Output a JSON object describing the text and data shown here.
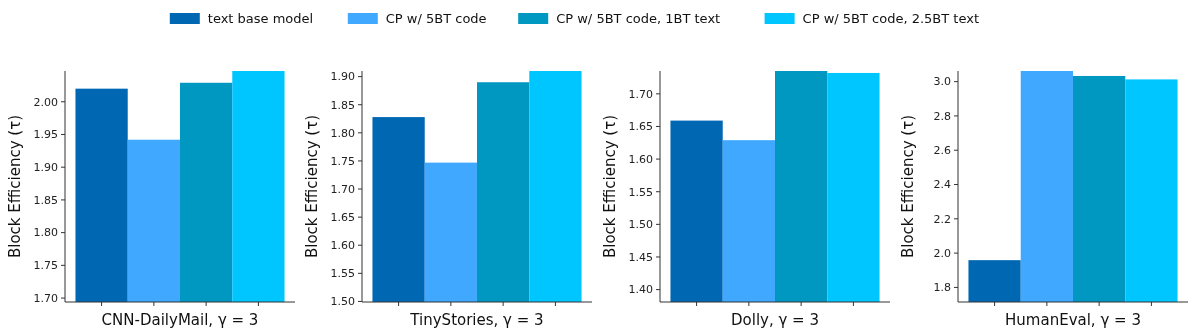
{
  "chart_data": [
    {
      "type": "bar",
      "xlabel": "CNN-DailyMail, γ = 3",
      "ylabel": "Block Efficiency (τ)",
      "categories": [
        null,
        null,
        null,
        null
      ],
      "legend": "top",
      "ylim": [
        1.694,
        2.047
      ],
      "yticks": [
        {
          "value": 1.7,
          "label": "1.70"
        },
        {
          "value": 1.75,
          "label": "1.75"
        },
        {
          "value": 1.8,
          "label": "1.80"
        },
        1.85,
        {
          "value": 1.9,
          "label": "1.90"
        },
        1.95,
        {
          "value": 2.0,
          "label": "2.00"
        }
      ],
      "series": [
        {
          "name": "text base model",
          "color": "#0068b3",
          "values": [
            2.02,
            null,
            null,
            null
          ]
        },
        {
          "name": "CP w/ 5BT code",
          "color": "#40a9ff",
          "values": [
            null,
            1.942,
            null,
            null
          ]
        },
        {
          "name": "CP w/ 5BT code, 1BT text",
          "color": "#0097c1",
          "values": [
            null,
            null,
            2.029,
            null
          ]
        },
        {
          "name": "CP w/ 5BT code, 2.5BT text",
          "color": "#00c6ff",
          "values": [
            null,
            null,
            null,
            2.047
          ]
        }
      ]
    },
    {
      "type": "bar",
      "xlabel": "TinyStories, γ = 3",
      "ylabel": "Block Efficiency (τ)",
      "categories": [
        null,
        null,
        null,
        null
      ],
      "ylim": [
        1.499,
        1.91
      ],
      "yticks": [
        {
          "value": 1.5,
          "label": "1.50"
        },
        1.55,
        {
          "value": 1.6,
          "label": "1.60"
        },
        1.65,
        {
          "value": 1.7,
          "label": "1.70"
        },
        1.75,
        {
          "value": 1.8,
          "label": "1.80"
        },
        1.85,
        {
          "value": 1.9,
          "label": "1.90"
        }
      ],
      "series": [
        {
          "color": "#0068b3",
          "values": [
            1.828,
            null,
            null,
            null
          ]
        },
        {
          "color": "#40a9ff",
          "values": [
            null,
            1.747,
            null,
            null
          ]
        },
        {
          "color": "#0097c1",
          "values": [
            null,
            null,
            1.89,
            null
          ]
        },
        {
          "color": "#00c6ff",
          "values": [
            null,
            null,
            null,
            1.91
          ]
        }
      ]
    },
    {
      "type": "bar",
      "xlabel": "Dolly, γ = 3",
      "ylabel": "Block Efficiency (τ)",
      "categories": [
        null,
        null,
        null,
        null
      ],
      "ylim": [
        1.381,
        1.735
      ],
      "yticks": [
        {
          "value": 1.4,
          "label": "1.40"
        },
        1.45,
        {
          "value": 1.5,
          "label": "1.50"
        },
        1.55,
        {
          "value": 1.6,
          "label": "1.60"
        },
        1.65,
        {
          "value": 1.7,
          "label": "1.70"
        }
      ],
      "series": [
        {
          "color": "#0068b3",
          "values": [
            1.659,
            null,
            null,
            null
          ]
        },
        {
          "color": "#40a9ff",
          "values": [
            null,
            1.629,
            null,
            null
          ]
        },
        {
          "color": "#0097c1",
          "values": [
            null,
            null,
            1.735,
            null
          ]
        },
        {
          "color": "#00c6ff",
          "values": [
            null,
            null,
            null,
            1.732
          ]
        }
      ]
    },
    {
      "type": "bar",
      "xlabel": "HumanEval, γ = 3",
      "ylabel": "Block Efficiency (τ)",
      "categories": [
        null,
        null,
        null,
        null
      ],
      "ylim": [
        1.715,
        3.062
      ],
      "yticks": [
        1.8,
        {
          "value": 2.0,
          "label": "2.0"
        },
        2.2,
        2.4,
        2.6,
        2.8,
        {
          "value": 3.0,
          "label": "3.0"
        }
      ],
      "series": [
        {
          "color": "#0068b3",
          "values": [
            1.959,
            null,
            null,
            null
          ]
        },
        {
          "color": "#40a9ff",
          "values": [
            null,
            3.062,
            null,
            null
          ]
        },
        {
          "color": "#0097c1",
          "values": [
            null,
            null,
            3.033,
            null
          ]
        },
        {
          "color": "#00c6ff",
          "values": [
            null,
            null,
            null,
            3.013
          ]
        }
      ]
    }
  ]
}
